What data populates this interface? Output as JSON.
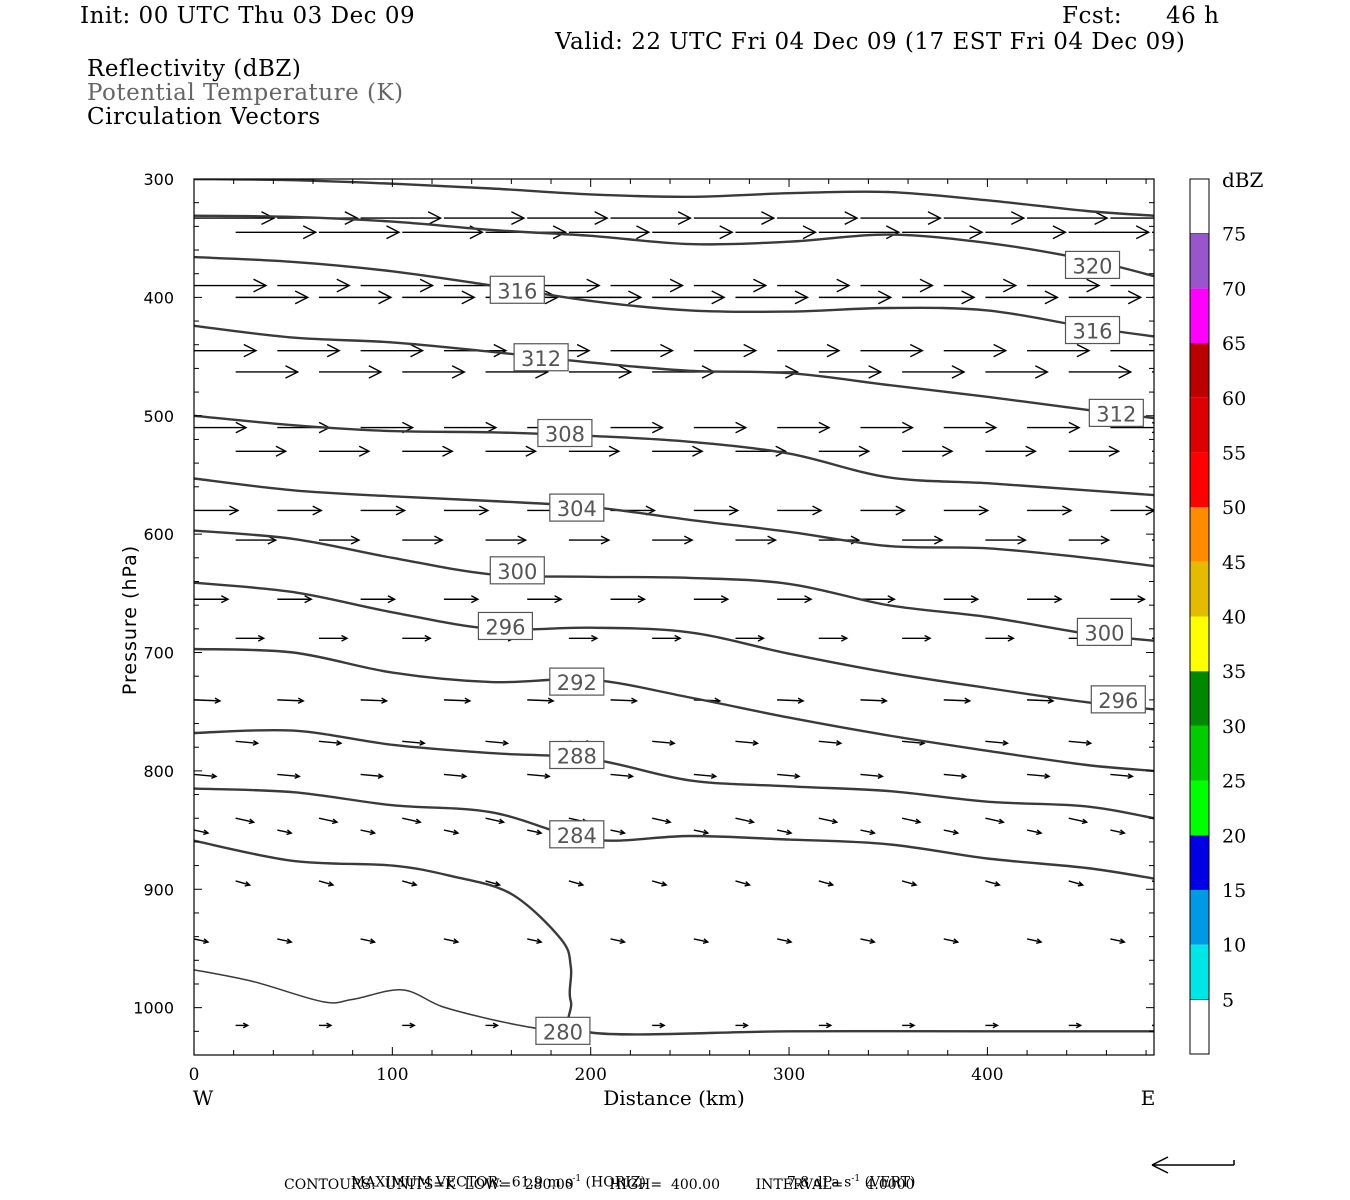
{
  "header": {
    "init": "Init: 00 UTC Thu 03 Dec 09",
    "fcst_label": "Fcst:",
    "fcst_value": "46 h",
    "valid": "Valid: 22 UTC Fri 04 Dec 09 (17 EST Fri 04 Dec 09)",
    "fields": [
      "Reflectivity (dBZ)",
      "Potential Temperature (K)",
      "Circulation Vectors"
    ]
  },
  "axes": {
    "ylabel": "Pressure (hPa)",
    "xlabel": "Distance (km)",
    "x_left_label": "W",
    "x_right_label": "E",
    "y_ticks": [
      "300",
      "400",
      "500",
      "600",
      "700",
      "800",
      "900",
      "1000"
    ],
    "x_ticks": [
      "0",
      "100",
      "200",
      "300",
      "400"
    ]
  },
  "colorbar": {
    "title": "dBZ",
    "labels": [
      "5",
      "10",
      "15",
      "20",
      "25",
      "30",
      "35",
      "40",
      "45",
      "50",
      "55",
      "60",
      "65",
      "70",
      "75"
    ],
    "colors": [
      "#00e5e5",
      "#0099e5",
      "#0000e5",
      "#00ff00",
      "#00cc00",
      "#008800",
      "#ffff00",
      "#e5bb00",
      "#ff8c00",
      "#ff0000",
      "#dd0000",
      "#bb0000",
      "#ff00ff",
      "#9955cc"
    ]
  },
  "footer": {
    "max_vector": "MAXIMUM VECTOR:  61.9 m s",
    "max_vector_exp": "-1",
    "max_vector_horiz": " (HORIZ)",
    "max_vector_vert": "7.8 dPa s",
    "max_vector_vert_exp": "-1",
    "max_vector_vert_tail": " (VERT)",
    "contours": "CONTOURS:  UNITS=K  LOW=   280.00        HIGH=  400.00        INTERVAL=     4.0000"
  },
  "chart_data": {
    "type": "line",
    "title": "",
    "xlabel": "Distance (km)",
    "ylabel": "Pressure (hPa)",
    "xlim": [
      0,
      484
    ],
    "ylim": [
      1040,
      300
    ],
    "series": [
      {
        "name": "",
        "label": "",
        "points": [
          [
            0,
            300
          ],
          [
            50,
            301
          ],
          [
            100,
            304
          ],
          [
            150,
            308
          ],
          [
            200,
            313
          ],
          [
            250,
            315
          ],
          [
            300,
            312
          ],
          [
            350,
            311
          ],
          [
            400,
            318
          ],
          [
            450,
            327
          ],
          [
            484,
            331
          ]
        ]
      },
      {
        "name": "",
        "label": "",
        "points": [
          [
            0,
            331
          ],
          [
            50,
            332
          ],
          [
            100,
            336
          ],
          [
            150,
            343
          ],
          [
            200,
            348
          ],
          [
            250,
            355
          ],
          [
            300,
            353
          ],
          [
            350,
            347
          ],
          [
            400,
            354
          ],
          [
            450,
            368
          ],
          [
            484,
            382
          ]
        ]
      },
      {
        "name": "",
        "label": "316",
        "points": [
          [
            0,
            366
          ],
          [
            50,
            370
          ],
          [
            100,
            378
          ],
          [
            150,
            390
          ],
          [
            200,
            403
          ],
          [
            250,
            411
          ],
          [
            300,
            412
          ],
          [
            350,
            409
          ],
          [
            400,
            411
          ],
          [
            450,
            425
          ],
          [
            484,
            433
          ]
        ]
      },
      {
        "name": "",
        "label": "312",
        "points": [
          [
            0,
            424
          ],
          [
            50,
            434
          ],
          [
            100,
            438
          ],
          [
            150,
            446
          ],
          [
            200,
            455
          ],
          [
            250,
            462
          ],
          [
            300,
            464
          ],
          [
            350,
            474
          ],
          [
            400,
            484
          ],
          [
            450,
            495
          ],
          [
            484,
            502
          ]
        ]
      },
      {
        "name": "",
        "label": "308",
        "points": [
          [
            0,
            500
          ],
          [
            50,
            508
          ],
          [
            100,
            513
          ],
          [
            150,
            514
          ],
          [
            200,
            517
          ],
          [
            250,
            522
          ],
          [
            300,
            532
          ],
          [
            350,
            552
          ],
          [
            400,
            557
          ],
          [
            450,
            563
          ],
          [
            484,
            567
          ]
        ]
      },
      {
        "name": "",
        "label": "304",
        "points": [
          [
            0,
            553
          ],
          [
            50,
            563
          ],
          [
            100,
            568
          ],
          [
            150,
            572
          ],
          [
            200,
            577
          ],
          [
            250,
            588
          ],
          [
            300,
            598
          ],
          [
            350,
            610
          ],
          [
            400,
            612
          ],
          [
            450,
            620
          ],
          [
            484,
            627
          ]
        ]
      },
      {
        "name": "",
        "label": "300",
        "points": [
          [
            0,
            597
          ],
          [
            50,
            604
          ],
          [
            100,
            620
          ],
          [
            150,
            634
          ],
          [
            200,
            636
          ],
          [
            250,
            637
          ],
          [
            300,
            642
          ],
          [
            350,
            660
          ],
          [
            400,
            670
          ],
          [
            450,
            684
          ],
          [
            484,
            690
          ]
        ]
      },
      {
        "name": "",
        "label": "296",
        "points": [
          [
            0,
            641
          ],
          [
            50,
            649
          ],
          [
            100,
            666
          ],
          [
            150,
            680
          ],
          [
            200,
            679
          ],
          [
            250,
            683
          ],
          [
            300,
            701
          ],
          [
            350,
            717
          ],
          [
            400,
            730
          ],
          [
            450,
            742
          ],
          [
            484,
            748
          ]
        ]
      },
      {
        "name": "",
        "label": "292",
        "points": [
          [
            0,
            697
          ],
          [
            50,
            700
          ],
          [
            100,
            717
          ],
          [
            150,
            725
          ],
          [
            200,
            723
          ],
          [
            250,
            738
          ],
          [
            300,
            755
          ],
          [
            350,
            770
          ],
          [
            400,
            783
          ],
          [
            450,
            795
          ],
          [
            484,
            800
          ]
        ]
      },
      {
        "name": "",
        "label": "288",
        "points": [
          [
            0,
            768
          ],
          [
            50,
            766
          ],
          [
            100,
            778
          ],
          [
            150,
            785
          ],
          [
            200,
            790
          ],
          [
            250,
            808
          ],
          [
            300,
            813
          ],
          [
            350,
            817
          ],
          [
            400,
            826
          ],
          [
            450,
            830
          ],
          [
            484,
            840
          ]
        ]
      },
      {
        "name": "",
        "label": "284",
        "points": [
          [
            0,
            815
          ],
          [
            50,
            818
          ],
          [
            100,
            829
          ],
          [
            150,
            835
          ],
          [
            200,
            858
          ],
          [
            250,
            855
          ],
          [
            300,
            858
          ],
          [
            350,
            862
          ],
          [
            400,
            874
          ],
          [
            450,
            882
          ],
          [
            484,
            891
          ]
        ]
      },
      {
        "name": "",
        "label": "280",
        "points": [
          [
            0,
            859
          ],
          [
            50,
            876
          ],
          [
            100,
            880
          ],
          [
            130,
            889
          ],
          [
            160,
            904
          ],
          [
            185,
            942
          ],
          [
            190,
            966
          ],
          [
            190,
            995
          ],
          [
            200,
            1021
          ],
          [
            300,
            1020
          ],
          [
            400,
            1020
          ],
          [
            484,
            1020
          ]
        ]
      },
      {
        "name": "",
        "label": "",
        "points": [
          [
            0,
            968
          ],
          [
            30,
            978
          ],
          [
            65,
            995
          ],
          [
            80,
            993
          ],
          [
            105,
            985
          ],
          [
            125,
            999
          ],
          [
            150,
            1010
          ],
          [
            175,
            1018
          ],
          [
            195,
            1020
          ]
        ]
      }
    ],
    "contour_labels": [
      {
        "text": "316",
        "x": 163,
        "p": 394
      },
      {
        "text": "312",
        "x": 175,
        "p": 451
      },
      {
        "text": "308",
        "x": 187,
        "p": 515
      },
      {
        "text": "304",
        "x": 193,
        "p": 578
      },
      {
        "text": "300",
        "x": 163,
        "p": 631
      },
      {
        "text": "296",
        "x": 157,
        "p": 678
      },
      {
        "text": "292",
        "x": 193,
        "p": 725
      },
      {
        "text": "288",
        "x": 193,
        "p": 787
      },
      {
        "text": "284",
        "x": 193,
        "p": 854
      },
      {
        "text": "280",
        "x": 186,
        "p": 1020
      },
      {
        "text": "320",
        "x": 453,
        "p": 373
      },
      {
        "text": "316",
        "x": 453,
        "p": 428
      },
      {
        "text": "312",
        "x": 465,
        "p": 498
      },
      {
        "text": "300",
        "x": 459,
        "p": 683
      },
      {
        "text": "296",
        "x": 466,
        "p": 740
      }
    ],
    "vector_rows": [
      {
        "p": 333,
        "dx": 80,
        "dy": 0
      },
      {
        "p": 345,
        "dx": 80,
        "dy": 0
      },
      {
        "p": 390,
        "dx": 72,
        "dy": 0
      },
      {
        "p": 400,
        "dx": 72,
        "dy": 0
      },
      {
        "p": 445,
        "dx": 62,
        "dy": 0
      },
      {
        "p": 463,
        "dx": 62,
        "dy": 0
      },
      {
        "p": 510,
        "dx": 52,
        "dy": 0
      },
      {
        "p": 530,
        "dx": 50,
        "dy": 0
      },
      {
        "p": 580,
        "dx": 44,
        "dy": 0
      },
      {
        "p": 605,
        "dx": 40,
        "dy": 0
      },
      {
        "p": 655,
        "dx": 34,
        "dy": 0
      },
      {
        "p": 688,
        "dx": 28,
        "dy": 0
      },
      {
        "p": 740,
        "dx": 26,
        "dy": 1
      },
      {
        "p": 775,
        "dx": 22,
        "dy": 2
      },
      {
        "p": 803,
        "dx": 22,
        "dy": 2
      },
      {
        "p": 840,
        "dx": 18,
        "dy": 4
      },
      {
        "p": 850,
        "dx": 14,
        "dy": 3
      },
      {
        "p": 893,
        "dx": 14,
        "dy": 4
      },
      {
        "p": 942,
        "dx": 14,
        "dy": 3
      },
      {
        "p": 1015,
        "dx": 12,
        "dy": 0
      }
    ]
  }
}
